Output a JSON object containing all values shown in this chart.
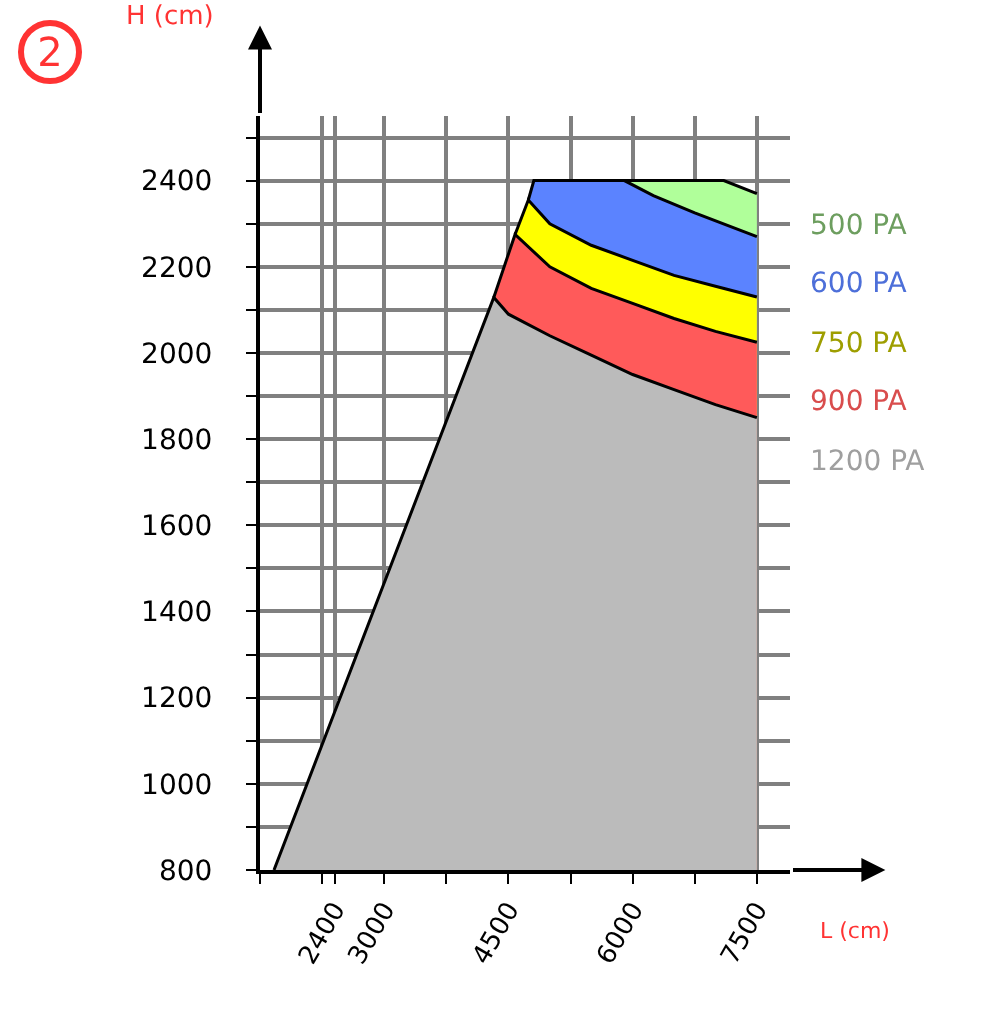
{
  "chart_data": {
    "type": "area",
    "xlabel": "L (cm)",
    "ylabel": "H (cm)",
    "annotations": [
      "2"
    ],
    "xlim": [
      1500,
      7900
    ],
    "ylim": [
      800,
      2550
    ],
    "xticks": [
      {
        "value": 1500,
        "label": null
      },
      {
        "value": 2250,
        "label": null
      },
      2400,
      3000,
      {
        "value": 3750,
        "label": null
      },
      4500,
      {
        "value": 5250,
        "label": null
      },
      6000,
      {
        "value": 6750,
        "label": null
      },
      7500
    ],
    "yticks": [
      800,
      {
        "value": 900,
        "label": null
      },
      1000,
      {
        "value": 1100,
        "label": null
      },
      1200,
      {
        "value": 1300,
        "label": null
      },
      1400,
      {
        "value": 1500,
        "label": null
      },
      1600,
      {
        "value": 1700,
        "label": null
      },
      1800,
      {
        "value": 1900,
        "label": null
      },
      2000,
      {
        "value": 2100,
        "label": null
      },
      2200,
      {
        "value": 2300,
        "label": null
      },
      2400,
      {
        "value": 2500,
        "label": null
      }
    ],
    "grid": true,
    "legend": false,
    "series": [
      {
        "name": "1200 PA",
        "color": "#bbbbbb",
        "x": [
          1669,
          4323,
          4500,
          5000,
          5500,
          6000,
          6500,
          7000,
          7500
        ],
        "values": [
          800,
          2129,
          2090,
          2040,
          1995,
          1950,
          1915,
          1880,
          1850
        ]
      },
      {
        "name": "900 PA",
        "color": "#ff5a5a",
        "x": [
          4323,
          4580,
          5000,
          5500,
          6000,
          6500,
          7000,
          7500
        ],
        "values": [
          2129,
          2275,
          2200,
          2150,
          2115,
          2080,
          2050,
          2025
        ]
      },
      {
        "name": "750 PA",
        "color": "#ffff00",
        "x": [
          4580,
          4740,
          5000,
          5500,
          6000,
          6500,
          7000,
          7500
        ],
        "values": [
          2275,
          2355,
          2300,
          2250,
          2215,
          2180,
          2155,
          2130
        ]
      },
      {
        "name": "600 PA",
        "color": "#5b83ff",
        "x": [
          4740,
          4807,
          5000,
          5500,
          5900,
          6250,
          6750,
          7500
        ],
        "values": [
          2355,
          2400,
          2400,
          2400,
          2400,
          2365,
          2325,
          2270
        ]
      },
      {
        "name": "500 PA",
        "color": "#b0ff9a",
        "x": [
          5900,
          6250,
          6750,
          7100,
          7500
        ],
        "values": [
          2400,
          2400,
          2400,
          2400,
          2370
        ]
      }
    ]
  }
}
